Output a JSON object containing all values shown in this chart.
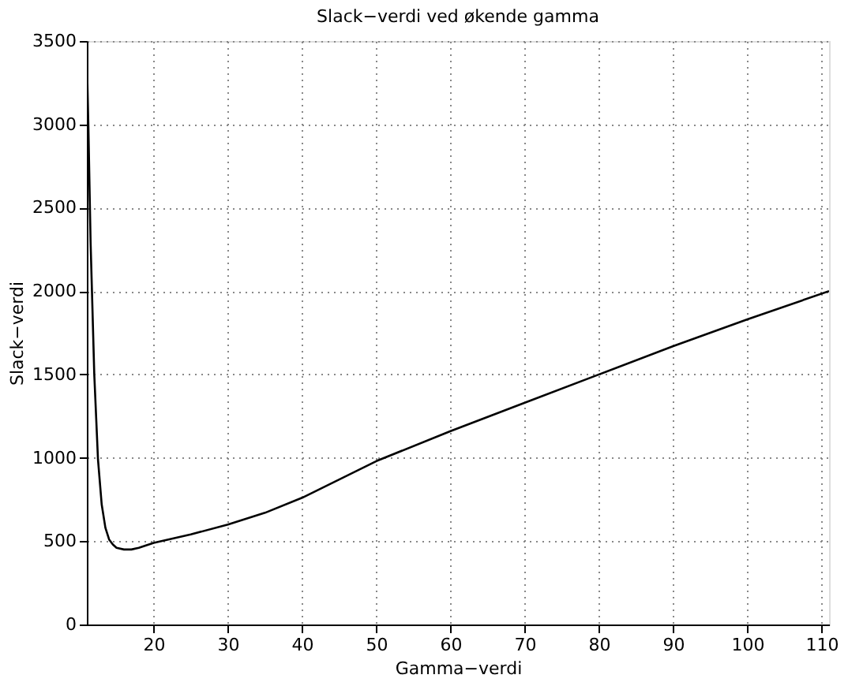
{
  "chart_data": {
    "type": "line",
    "title": "Slack−verdi ved økende gamma",
    "xlabel": "Gamma−verdi",
    "ylabel": "Slack−verdi",
    "x": [
      11,
      11.2,
      11.5,
      12,
      12.5,
      13,
      13.5,
      14,
      14.5,
      15,
      16,
      17,
      18,
      20,
      25,
      30,
      35,
      40,
      45,
      50,
      60,
      70,
      80,
      90,
      100,
      111
    ],
    "series": [
      {
        "color": "#000000",
        "values": [
          3400,
          3000,
          2300,
          1500,
          990,
          720,
          580,
          510,
          480,
          460,
          450,
          450,
          460,
          490,
          540,
          600,
          670,
          760,
          870,
          980,
          1160,
          1330,
          1500,
          1670,
          1830,
          2000
        ]
      }
    ],
    "xlim": [
      11,
      111
    ],
    "ylim": [
      0,
      3500
    ],
    "xticks": [
      20,
      30,
      40,
      50,
      60,
      70,
      80,
      90,
      100,
      110
    ],
    "yticks": [
      0,
      500,
      1000,
      1500,
      2000,
      2500,
      3000,
      3500
    ],
    "grid": true,
    "marker": "none",
    "line_style": "solid"
  }
}
